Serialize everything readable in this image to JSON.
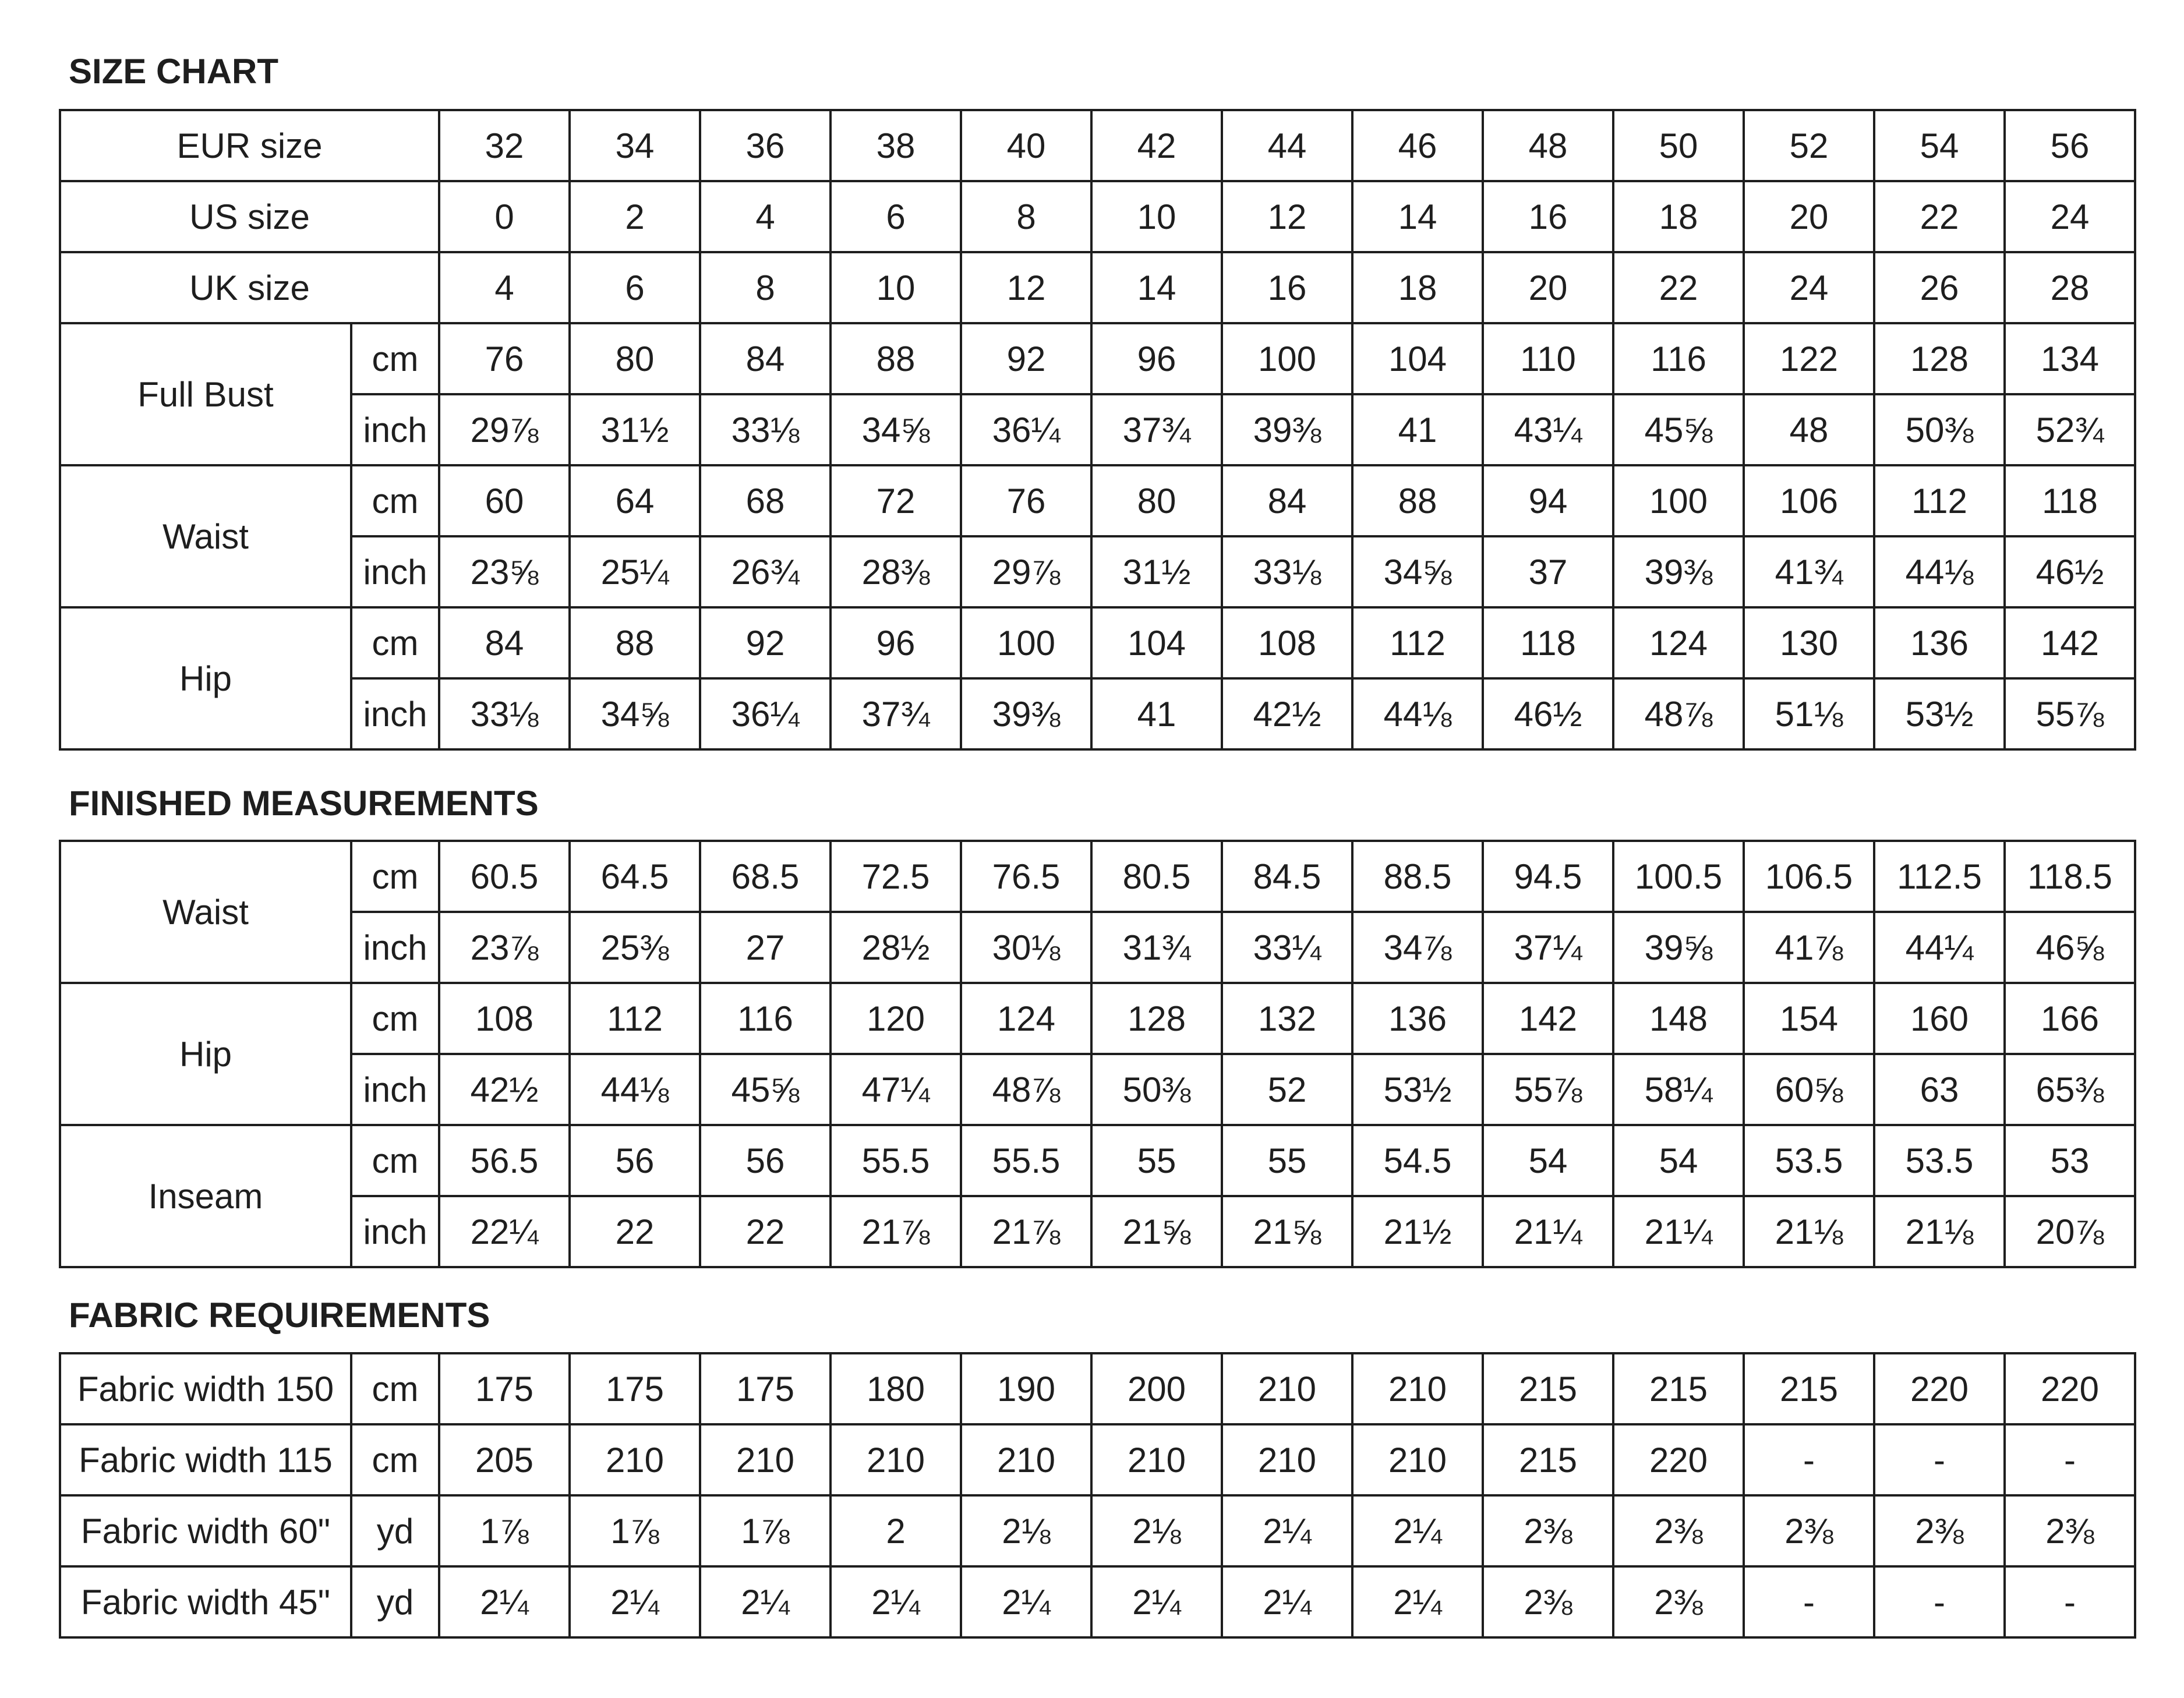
{
  "size_chart": {
    "title": "SIZE CHART",
    "header_rows": [
      {
        "label": "EUR size",
        "values": [
          "32",
          "34",
          "36",
          "38",
          "40",
          "42",
          "44",
          "46",
          "48",
          "50",
          "52",
          "54",
          "56"
        ]
      },
      {
        "label": "US size",
        "values": [
          "0",
          "2",
          "4",
          "6",
          "8",
          "10",
          "12",
          "14",
          "16",
          "18",
          "20",
          "22",
          "24"
        ]
      },
      {
        "label": "UK size",
        "values": [
          "4",
          "6",
          "8",
          "10",
          "12",
          "14",
          "16",
          "18",
          "20",
          "22",
          "24",
          "26",
          "28"
        ]
      }
    ],
    "groups": [
      {
        "label": "Full Bust",
        "rows": [
          {
            "unit": "cm",
            "values": [
              "76",
              "80",
              "84",
              "88",
              "92",
              "96",
              "100",
              "104",
              "110",
              "116",
              "122",
              "128",
              "134"
            ]
          },
          {
            "unit": "inch",
            "values": [
              "29⅞",
              "31½",
              "33⅛",
              "34⅝",
              "36¼",
              "37¾",
              "39⅜",
              "41",
              "43¼",
              "45⅝",
              "48",
              "50⅜",
              "52¾"
            ]
          }
        ]
      },
      {
        "label": "Waist",
        "rows": [
          {
            "unit": "cm",
            "values": [
              "60",
              "64",
              "68",
              "72",
              "76",
              "80",
              "84",
              "88",
              "94",
              "100",
              "106",
              "112",
              "118"
            ]
          },
          {
            "unit": "inch",
            "values": [
              "23⅝",
              "25¼",
              "26¾",
              "28⅜",
              "29⅞",
              "31½",
              "33⅛",
              "34⅝",
              "37",
              "39⅜",
              "41¾",
              "44⅛",
              "46½"
            ]
          }
        ]
      },
      {
        "label": "Hip",
        "rows": [
          {
            "unit": "cm",
            "values": [
              "84",
              "88",
              "92",
              "96",
              "100",
              "104",
              "108",
              "112",
              "118",
              "124",
              "130",
              "136",
              "142"
            ]
          },
          {
            "unit": "inch",
            "values": [
              "33⅛",
              "34⅝",
              "36¼",
              "37¾",
              "39⅜",
              "41",
              "42½",
              "44⅛",
              "46½",
              "48⅞",
              "51⅛",
              "53½",
              "55⅞"
            ]
          }
        ]
      }
    ]
  },
  "finished_measurements": {
    "title": "FINISHED MEASUREMENTS",
    "groups": [
      {
        "label": "Waist",
        "rows": [
          {
            "unit": "cm",
            "values": [
              "60.5",
              "64.5",
              "68.5",
              "72.5",
              "76.5",
              "80.5",
              "84.5",
              "88.5",
              "94.5",
              "100.5",
              "106.5",
              "112.5",
              "118.5"
            ]
          },
          {
            "unit": "inch",
            "values": [
              "23⅞",
              "25⅜",
              "27",
              "28½",
              "30⅛",
              "31¾",
              "33¼",
              "34⅞",
              "37¼",
              "39⅝",
              "41⅞",
              "44¼",
              "46⅝"
            ]
          }
        ]
      },
      {
        "label": "Hip",
        "rows": [
          {
            "unit": "cm",
            "values": [
              "108",
              "112",
              "116",
              "120",
              "124",
              "128",
              "132",
              "136",
              "142",
              "148",
              "154",
              "160",
              "166"
            ]
          },
          {
            "unit": "inch",
            "values": [
              "42½",
              "44⅛",
              "45⅝",
              "47¼",
              "48⅞",
              "50⅜",
              "52",
              "53½",
              "55⅞",
              "58¼",
              "60⅝",
              "63",
              "65⅜"
            ]
          }
        ]
      },
      {
        "label": "Inseam",
        "rows": [
          {
            "unit": "cm",
            "values": [
              "56.5",
              "56",
              "56",
              "55.5",
              "55.5",
              "55",
              "55",
              "54.5",
              "54",
              "54",
              "53.5",
              "53.5",
              "53"
            ]
          },
          {
            "unit": "inch",
            "values": [
              "22¼",
              "22",
              "22",
              "21⅞",
              "21⅞",
              "21⅝",
              "21⅝",
              "21½",
              "21¼",
              "21¼",
              "21⅛",
              "21⅛",
              "20⅞"
            ]
          }
        ]
      }
    ]
  },
  "fabric_requirements": {
    "title": "FABRIC REQUIREMENTS",
    "rows": [
      {
        "label": "Fabric width 150",
        "unit": "cm",
        "values": [
          "175",
          "175",
          "175",
          "180",
          "190",
          "200",
          "210",
          "210",
          "215",
          "215",
          "215",
          "220",
          "220"
        ]
      },
      {
        "label": "Fabric width 115",
        "unit": "cm",
        "values": [
          "205",
          "210",
          "210",
          "210",
          "210",
          "210",
          "210",
          "210",
          "215",
          "220",
          "-",
          "-",
          "-"
        ]
      },
      {
        "label": "Fabric width 60\"",
        "unit": "yd",
        "values": [
          "1⅞",
          "1⅞",
          "1⅞",
          "2",
          "2⅛",
          "2⅛",
          "2¼",
          "2¼",
          "2⅜",
          "2⅜",
          "2⅜",
          "2⅜",
          "2⅜"
        ]
      },
      {
        "label": "Fabric width 45\"",
        "unit": "yd",
        "values": [
          "2¼",
          "2¼",
          "2¼",
          "2¼",
          "2¼",
          "2¼",
          "2¼",
          "2¼",
          "2⅜",
          "2⅜",
          "-",
          "-",
          "-"
        ]
      }
    ]
  }
}
